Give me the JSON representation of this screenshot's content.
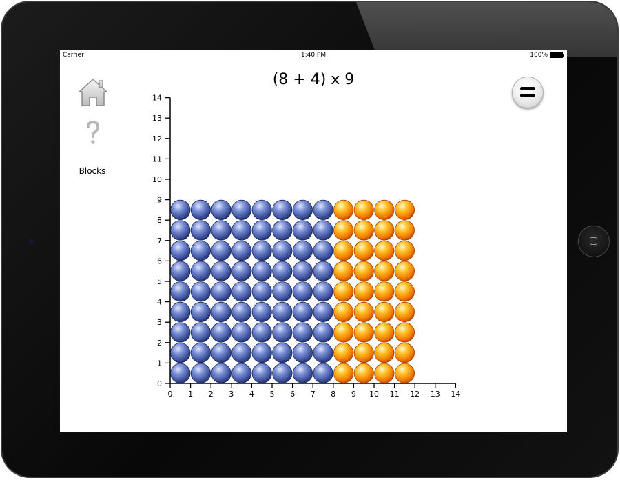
{
  "status_bar": {
    "carrier": "Carrier",
    "time": "1:40 PM",
    "battery": "100%"
  },
  "title": "(8 + 4) x 9",
  "sidebar": {
    "home_icon": "house-icon",
    "help_icon": "question-mark-icon",
    "blocks_label": "Blocks"
  },
  "menu_icon": "equals-icon",
  "grid": {
    "x_ticks": [
      "0",
      "1",
      "2",
      "3",
      "4",
      "5",
      "6",
      "7",
      "8",
      "9",
      "10",
      "11",
      "12",
      "13",
      "14"
    ],
    "y_ticks": [
      "0",
      "1",
      "2",
      "3",
      "4",
      "5",
      "6",
      "7",
      "8",
      "9",
      "10",
      "11",
      "12",
      "13",
      "14"
    ],
    "rows": 9,
    "blue_columns": 8,
    "orange_columns": 4,
    "blue_color": "#4a5fa8",
    "orange_color": "#f08a00"
  }
}
